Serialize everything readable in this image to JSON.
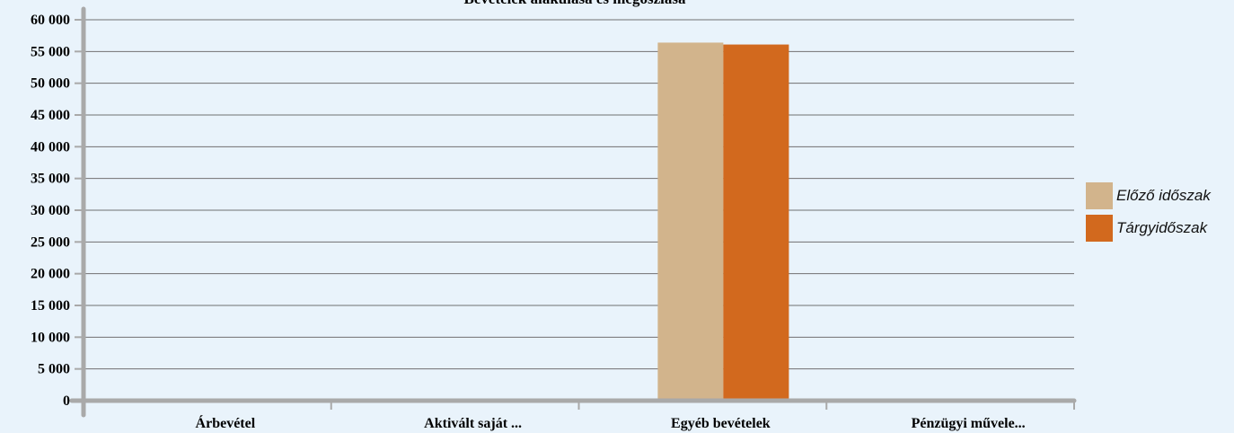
{
  "chart_data": {
    "type": "bar",
    "title": "Bevételek alakulása és megoszlása",
    "categories": [
      "Árbevétel",
      "Aktivált saját ...",
      "Egyéb bevételek",
      "Pénzügyi művele..."
    ],
    "series": [
      {
        "name": "Előző időszak",
        "color": "#d2b48c",
        "values": [
          0,
          0,
          56400,
          0
        ]
      },
      {
        "name": "Tárgyidőszak",
        "color": "#d2691e",
        "values": [
          0,
          0,
          56100,
          0
        ]
      }
    ],
    "yticks": [
      "0",
      "5 000",
      "10 000",
      "15 000",
      "20 000",
      "25 000",
      "30 000",
      "35 000",
      "40 000",
      "45 000",
      "50 000",
      "55 000",
      "60 000"
    ],
    "ylim": [
      0,
      60000
    ],
    "grid": true,
    "legend_position": "right",
    "colors": {
      "background": "#e9f3fb",
      "axis": "#a9a9a9",
      "grid": "#707070"
    }
  }
}
